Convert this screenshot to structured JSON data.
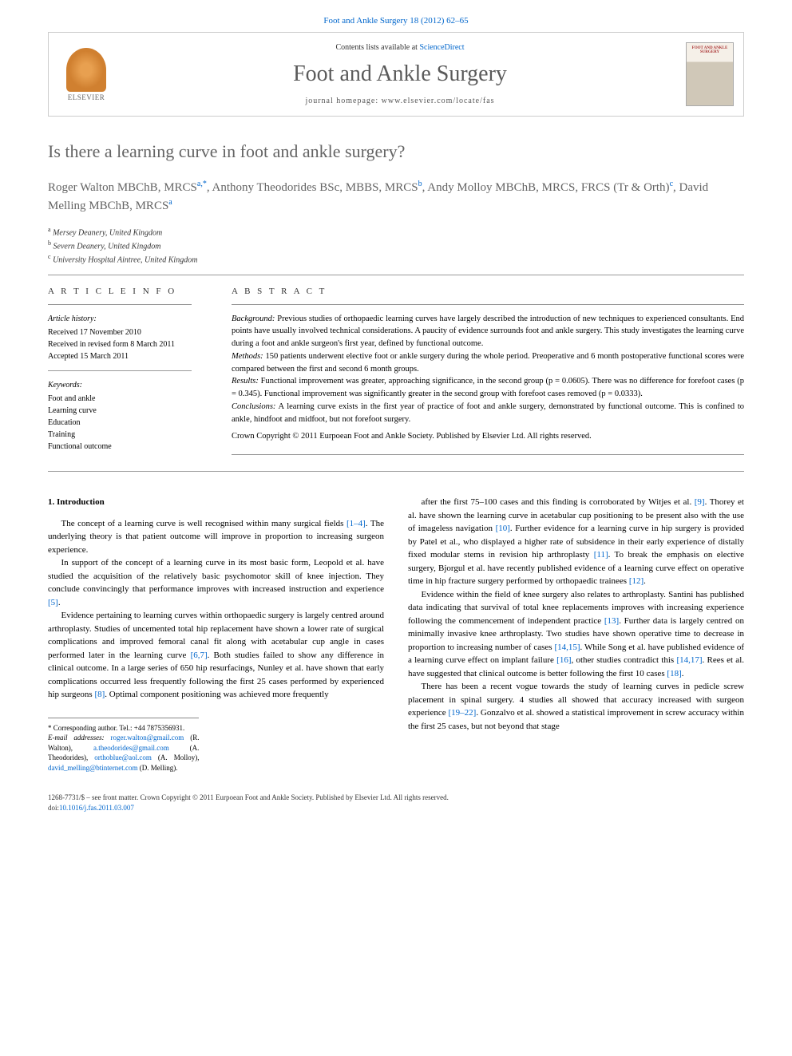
{
  "journal_ref": "Foot and Ankle Surgery 18 (2012) 62–65",
  "header": {
    "contents_prefix": "Contents lists available at ",
    "contents_link": "ScienceDirect",
    "journal_name": "Foot and Ankle Surgery",
    "homepage_prefix": "journal homepage: ",
    "homepage_url": "www.elsevier.com/locate/fas",
    "elsevier_label": "ELSEVIER",
    "cover_title": "FOOT AND ANKLE SURGERY"
  },
  "title": "Is there a learning curve in foot and ankle surgery?",
  "authors_html": "Roger Walton MBChB, MRCS<sup>a,*</sup>, Anthony Theodorides BSc, MBBS, MRCS<sup>b</sup>, Andy Molloy MBChB, MRCS, FRCS (Tr & Orth)<sup>c</sup>, David Melling MBChB, MRCS<sup>a</sup>",
  "affiliations": [
    {
      "sup": "a",
      "text": "Mersey Deanery, United Kingdom"
    },
    {
      "sup": "b",
      "text": "Severn Deanery, United Kingdom"
    },
    {
      "sup": "c",
      "text": "University Hospital Aintree, United Kingdom"
    }
  ],
  "article_info": {
    "heading": "A R T I C L E   I N F O",
    "history_label": "Article history:",
    "history": [
      "Received 17 November 2010",
      "Received in revised form 8 March 2011",
      "Accepted 15 March 2011"
    ],
    "keywords_label": "Keywords:",
    "keywords": [
      "Foot and ankle",
      "Learning curve",
      "Education",
      "Training",
      "Functional outcome"
    ]
  },
  "abstract": {
    "heading": "A B S T R A C T",
    "background_label": "Background:",
    "background": " Previous studies of orthopaedic learning curves have largely described the introduction of new techniques to experienced consultants. End points have usually involved technical considerations. A paucity of evidence surrounds foot and ankle surgery. This study investigates the learning curve during a foot and ankle surgeon's first year, defined by functional outcome.",
    "methods_label": "Methods:",
    "methods": " 150 patients underwent elective foot or ankle surgery during the whole period. Preoperative and 6 month postoperative functional scores were compared between the first and second 6 month groups.",
    "results_label": "Results:",
    "results": " Functional improvement was greater, approaching significance, in the second group (p = 0.0605). There was no difference for forefoot cases (p = 0.345). Functional improvement was significantly greater in the second group with forefoot cases removed (p = 0.0333).",
    "conclusions_label": "Conclusions:",
    "conclusions": " A learning curve exists in the first year of practice of foot and ankle surgery, demonstrated by functional outcome. This is confined to ankle, hindfoot and midfoot, but not forefoot surgery.",
    "copyright": "Crown Copyright © 2011 Eurpoean Foot and Ankle Society. Published by Elsevier Ltd. All rights reserved."
  },
  "intro": {
    "heading": "1. Introduction",
    "p1": "The concept of a learning curve is well recognised within many surgical fields [1–4]. The underlying theory is that patient outcome will improve in proportion to increasing surgeon experience.",
    "p2": "In support of the concept of a learning curve in its most basic form, Leopold et al. have studied the acquisition of the relatively basic psychomotor skill of knee injection. They conclude convincingly that performance improves with increased instruction and experience [5].",
    "p3": "Evidence pertaining to learning curves within orthopaedic surgery is largely centred around arthroplasty. Studies of uncemented total hip replacement have shown a lower rate of surgical complications and improved femoral canal fit along with acetabular cup angle in cases performed later in the learning curve [6,7]. Both studies failed to show any difference in clinical outcome. In a large series of 650 hip resurfacings, Nunley et al. have shown that early complications occurred less frequently following the first 25 cases performed by experienced hip surgeons [8]. Optimal component positioning was achieved more frequently",
    "p4": "after the first 75–100 cases and this finding is corroborated by Witjes et al. [9]. Thorey et al. have shown the learning curve in acetabular cup positioning to be present also with the use of imageless navigation [10]. Further evidence for a learning curve in hip surgery is provided by Patel et al., who displayed a higher rate of subsidence in their early experience of distally fixed modular stems in revision hip arthroplasty [11]. To break the emphasis on elective surgery, Bjorgul et al. have recently published evidence of a learning curve effect on operative time in hip fracture surgery performed by orthopaedic trainees [12].",
    "p5": "Evidence within the field of knee surgery also relates to arthroplasty. Santini has published data indicating that survival of total knee replacements improves with increasing experience following the commencement of independent practice [13]. Further data is largely centred on minimally invasive knee arthroplasty. Two studies have shown operative time to decrease in proportion to increasing number of cases [14,15]. While Song et al. have published evidence of a learning curve effect on implant failure [16], other studies contradict this [14,17]. Rees et al. have suggested that clinical outcome is better following the first 10 cases [18].",
    "p6": "There has been a recent vogue towards the study of learning curves in pedicle screw placement in spinal surgery. 4 studies all showed that accuracy increased with surgeon experience [19–22]. Gonzalvo et al. showed a statistical improvement in screw accuracy within the first 25 cases, but not beyond that stage"
  },
  "footnote": {
    "corr_label": "* Corresponding author. Tel.: +44 7875356931.",
    "email_label": "E-mail addresses:",
    "emails": "roger.walton@gmail.com (R. Walton), a.theodorides@gmail.com (A. Theodorides), orthoblue@aol.com (A. Molloy), david_melling@btinternet.com (D. Melling).",
    "e1": "roger.walton@gmail.com",
    "n1": " (R. Walton), ",
    "e2": "a.theodorides@gmail.com",
    "n2": " (A. Theodorides), ",
    "e3": "orthoblue@aol.com",
    "n3": " (A. Molloy), ",
    "e4": "david_melling@btinternet.com",
    "n4": " (D. Melling)."
  },
  "footer": {
    "line1": "1268-7731/$ – see front matter. Crown Copyright © 2011 Eurpoean Foot and Ankle Society. Published by Elsevier Ltd. All rights reserved.",
    "doi_label": "doi:",
    "doi": "10.1016/j.fas.2011.03.007"
  },
  "colors": {
    "link": "#0066cc",
    "heading_gray": "#646464",
    "rule": "#999999"
  }
}
